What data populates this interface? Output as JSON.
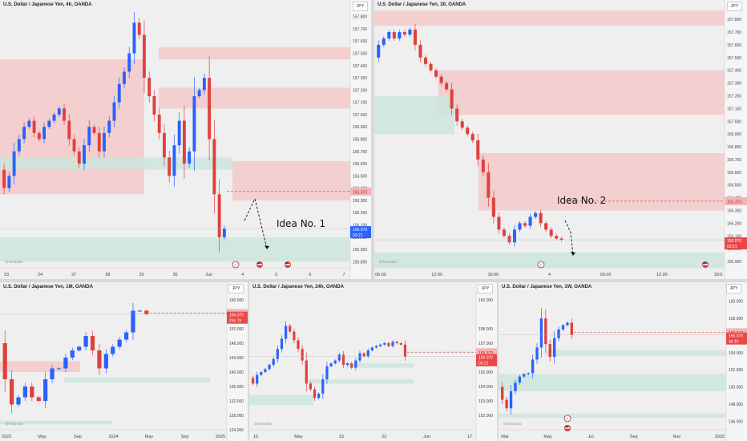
{
  "colors": {
    "up": "#2962ff",
    "down": "#e0403e",
    "supply": "#f3c9c9",
    "demand": "#cde5dc",
    "price_line": "#e05050",
    "price_box_red": "#e84848",
    "price_box_blue": "#2962ff"
  },
  "icons": [
    "flash-icon",
    "us-flag-icon"
  ],
  "chart_data": [
    {
      "id": "p1",
      "type": "candlestick",
      "title": "U.S. Dollar / Japanese Yen, 4h, OANDA",
      "currency": "JPY",
      "ylim": [
        155.75,
        157.85
      ],
      "yticks": [
        "157.800",
        "157.700",
        "157.600",
        "157.500",
        "157.400",
        "157.300",
        "157.200",
        "157.100",
        "157.000",
        "156.900",
        "156.800",
        "156.700",
        "156.600",
        "156.500",
        "156.400",
        "156.300",
        "156.200",
        "156.100",
        "156.000",
        "155.900",
        "155.800"
      ],
      "xticks": [
        "23",
        "24",
        "27",
        "28",
        "29",
        "30",
        "Jun",
        "4",
        "5",
        "6",
        "7"
      ],
      "last_price": "156.373",
      "last_price_2": "156.070",
      "countdown": "03:21",
      "idea_label": "Idea No. 1",
      "watermark": "@fxhandbv",
      "open": [
        156.55,
        156.4,
        156.5,
        156.7,
        156.8,
        156.9,
        156.95,
        156.85,
        156.8,
        156.9,
        156.95,
        157.0,
        157.05,
        156.95,
        156.8,
        156.7,
        156.6,
        156.75,
        156.9,
        156.85,
        156.7,
        156.85,
        156.95,
        157.1,
        157.25,
        157.35,
        157.5,
        157.75,
        157.65,
        157.3,
        157.15,
        157.0,
        156.85,
        156.65,
        156.5,
        156.75,
        156.95,
        156.6,
        156.7,
        157.15,
        157.2,
        157.3,
        156.8,
        156.35,
        156.0
      ],
      "close": [
        156.4,
        156.5,
        156.7,
        156.8,
        156.9,
        156.95,
        156.85,
        156.8,
        156.9,
        156.95,
        157.0,
        157.05,
        156.95,
        156.8,
        156.7,
        156.6,
        156.75,
        156.9,
        156.85,
        156.7,
        156.85,
        156.95,
        157.1,
        157.25,
        157.35,
        157.5,
        157.75,
        157.65,
        157.3,
        157.15,
        157.0,
        156.85,
        156.65,
        156.5,
        156.75,
        156.95,
        156.6,
        156.7,
        157.15,
        157.2,
        157.3,
        156.8,
        156.35,
        156.0,
        156.07
      ]
    },
    {
      "id": "p2",
      "type": "candlestick",
      "title": "U.S. Dollar / Japanese Yen, 30, OANDA",
      "currency": "JPY",
      "ylim": [
        155.85,
        157.87
      ],
      "yticks": [
        "157.800",
        "157.700",
        "157.600",
        "157.500",
        "157.400",
        "157.300",
        "157.200",
        "157.100",
        "157.000",
        "156.900",
        "156.800",
        "156.700",
        "156.600",
        "156.500",
        "156.400",
        "156.300",
        "156.200",
        "156.100",
        "156.000",
        "155.900"
      ],
      "xticks": [
        "06:00",
        "12:00",
        "18:00",
        "4",
        "06:00",
        "12:00",
        "18:0"
      ],
      "last_price": "156.373",
      "last_price_2": "156.070",
      "countdown": "03:21",
      "idea_label": "Idea No. 2",
      "watermark": "@fxhandbv",
      "open": [
        157.5,
        157.6,
        157.65,
        157.7,
        157.65,
        157.7,
        157.68,
        157.72,
        157.6,
        157.5,
        157.45,
        157.4,
        157.35,
        157.3,
        157.25,
        157.1,
        157.0,
        156.95,
        156.9,
        156.85,
        156.7,
        156.6,
        156.4,
        156.25,
        156.15,
        156.1,
        156.05,
        156.15,
        156.2,
        156.18,
        156.25,
        156.28,
        156.2,
        156.15,
        156.1,
        156.08
      ],
      "close": [
        157.6,
        157.65,
        157.7,
        157.65,
        157.7,
        157.68,
        157.72,
        157.6,
        157.5,
        157.45,
        157.4,
        157.35,
        157.3,
        157.25,
        157.1,
        157.0,
        156.95,
        156.9,
        156.85,
        156.7,
        156.6,
        156.4,
        156.25,
        156.15,
        156.1,
        156.05,
        156.15,
        156.2,
        156.18,
        156.25,
        156.28,
        156.2,
        156.15,
        156.1,
        156.08,
        156.07
      ]
    },
    {
      "id": "p3",
      "type": "candlestick",
      "title": "U.S. Dollar / Japanese Yen, 1M, OANDA",
      "currency": "JPY",
      "ylim": [
        124,
        162
      ],
      "yticks": [
        "160.000",
        "156.000",
        "152.000",
        "148.000",
        "144.000",
        "140.000",
        "136.000",
        "132.000",
        "128.000",
        "124.000"
      ],
      "xticks": [
        "2023",
        "May",
        "Sep",
        "2024",
        "May",
        "Sep",
        "2025"
      ],
      "last_price": "156.373",
      "last_price_2": "156.070",
      "countdown": "23d 7h",
      "watermark": "@fxhandbv",
      "open": [
        148,
        138,
        131,
        133,
        136,
        133,
        132,
        138,
        141,
        141,
        144,
        146,
        147,
        150,
        146,
        141,
        145,
        147,
        149,
        151,
        157,
        157
      ],
      "close": [
        138,
        131,
        133,
        136,
        133,
        132,
        138,
        141,
        141,
        144,
        146,
        147,
        150,
        146,
        141,
        145,
        147,
        149,
        151,
        157,
        157,
        156
      ]
    },
    {
      "id": "p4",
      "type": "candlestick",
      "title": "U.S. Dollar / Japanese Yen, 24h, OANDA",
      "currency": "JPY",
      "ylim": [
        151,
        160.5
      ],
      "yticks": [
        "160.000",
        "158.000",
        "157.000",
        "156.000",
        "155.000",
        "154.000",
        "153.000",
        "152.000"
      ],
      "xticks": [
        "15",
        "May",
        "13",
        "22",
        "Jun",
        "17"
      ],
      "last_price": "156.373",
      "last_price_2": "156.070",
      "countdown": "03:21",
      "watermark": "@fxhandbv",
      "open": [
        154.6,
        154.2,
        154.8,
        155.0,
        155.2,
        155.5,
        155.9,
        156.6,
        157.3,
        158.2,
        157.8,
        157.2,
        156.6,
        155.8,
        154.2,
        153.8,
        153.2,
        153.5,
        154.5,
        155.4,
        155.6,
        155.8,
        156.2,
        155.5,
        155.6,
        155.3,
        155.8,
        156.3,
        156.1,
        156.5,
        156.7,
        156.8,
        156.9,
        157.0,
        156.8,
        157.1,
        157.0,
        156.9
      ],
      "close": [
        154.2,
        154.8,
        155.0,
        155.2,
        155.5,
        155.9,
        156.6,
        157.3,
        158.2,
        157.8,
        157.2,
        156.6,
        155.8,
        154.2,
        153.8,
        153.2,
        153.5,
        154.5,
        155.4,
        155.6,
        155.8,
        156.2,
        155.5,
        155.6,
        155.3,
        155.8,
        156.3,
        156.1,
        156.5,
        156.7,
        156.8,
        156.9,
        157.0,
        156.8,
        157.1,
        157.0,
        156.9,
        156.07
      ]
    },
    {
      "id": "p5",
      "type": "candlestick",
      "title": "U.S. Dollar / Japanese Yen, 1W, OANDA",
      "currency": "JPY",
      "ylim": [
        145,
        161
      ],
      "yticks": [
        "160.000",
        "158.000",
        "156.000",
        "154.000",
        "152.000",
        "150.000",
        "148.000",
        "146.000"
      ],
      "xticks": [
        "Mar",
        "May",
        "Jul",
        "Sep",
        "Nov",
        "2025"
      ],
      "last_price": "156.373",
      "last_price_2": "156.070",
      "countdown": "4d 1h",
      "watermark": "@fxhandbv",
      "open": [
        150.0,
        148.5,
        147.5,
        149.5,
        150.5,
        151.2,
        151.5,
        151.6,
        153.2,
        154.6,
        158.0,
        155.0,
        153.5,
        155.7,
        156.7,
        157.2,
        157.5
      ],
      "close": [
        148.5,
        147.5,
        149.5,
        150.5,
        151.2,
        151.5,
        151.6,
        153.2,
        154.6,
        158.0,
        155.0,
        153.5,
        155.7,
        156.7,
        157.2,
        157.5,
        156.07
      ]
    }
  ]
}
